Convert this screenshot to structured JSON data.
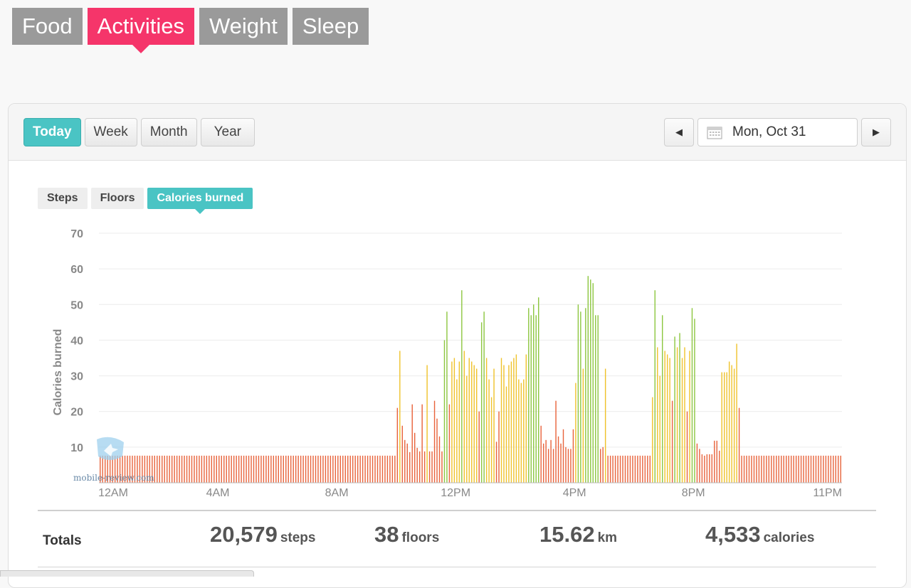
{
  "topnav": {
    "tabs": [
      {
        "label": "Food",
        "active": false
      },
      {
        "label": "Activities",
        "active": true
      },
      {
        "label": "Weight",
        "active": false
      },
      {
        "label": "Sleep",
        "active": false
      }
    ]
  },
  "range": {
    "buttons": [
      {
        "label": "Today",
        "active": true
      },
      {
        "label": "Week",
        "active": false
      },
      {
        "label": "Month",
        "active": false
      },
      {
        "label": "Year",
        "active": false
      }
    ]
  },
  "date": {
    "label": "Mon, Oct 31",
    "prev_icon": "triangle-left-icon",
    "next_icon": "triangle-right-icon",
    "calendar_icon": "calendar-icon"
  },
  "metric_tabs": [
    {
      "label": "Steps",
      "active": false
    },
    {
      "label": "Floors",
      "active": false
    },
    {
      "label": "Calories burned",
      "active": true
    }
  ],
  "colors": {
    "accent": "#4ac4c4",
    "activities": "#f5356a",
    "low": "#e8623a",
    "mid": "#efc22a",
    "high": "#8cc63f"
  },
  "chart_data": {
    "type": "bar",
    "ylabel": "Calories burned",
    "xlabel": "",
    "ylim": [
      0,
      70
    ],
    "yticks": [
      10,
      20,
      30,
      40,
      50,
      60,
      70
    ],
    "xticks": [
      "12AM",
      "4AM",
      "8AM",
      "12PM",
      "4PM",
      "8PM",
      "11PM"
    ],
    "interval_minutes": 5,
    "values": [
      7.6,
      7.6,
      7.6,
      7.6,
      7.6,
      7.6,
      7.6,
      7.6,
      7.6,
      7.6,
      7.6,
      7.6,
      7.6,
      7.6,
      7.6,
      7.6,
      7.6,
      7.6,
      7.6,
      7.6,
      7.6,
      7.6,
      7.6,
      7.6,
      7.6,
      7.6,
      7.6,
      7.6,
      7.6,
      7.6,
      7.6,
      7.6,
      7.6,
      7.6,
      7.6,
      7.6,
      7.6,
      7.6,
      7.6,
      7.6,
      7.6,
      7.6,
      7.6,
      7.6,
      7.6,
      7.6,
      7.6,
      7.6,
      7.6,
      7.6,
      7.6,
      7.6,
      7.6,
      7.6,
      7.6,
      7.6,
      7.6,
      7.6,
      7.6,
      7.6,
      7.6,
      7.6,
      7.6,
      7.6,
      7.6,
      7.6,
      7.6,
      7.6,
      7.6,
      7.6,
      7.6,
      7.6,
      7.6,
      7.6,
      7.6,
      7.6,
      7.6,
      7.6,
      7.6,
      7.6,
      7.6,
      7.6,
      7.6,
      7.6,
      7.6,
      7.6,
      7.6,
      7.6,
      7.6,
      7.6,
      7.6,
      7.6,
      7.6,
      7.6,
      7.6,
      7.6,
      7.6,
      7.6,
      7.6,
      7.6,
      7.6,
      7.6,
      7.6,
      7.6,
      7.6,
      7.6,
      7.6,
      7.6,
      7.6,
      7.6,
      7.6,
      7.6,
      7.6,
      7.6,
      7.6,
      7.6,
      7.6,
      7.6,
      7.6,
      7.6,
      21,
      37,
      16,
      12,
      11,
      8.6,
      22,
      14,
      9.8,
      8.8,
      22,
      8.8,
      33,
      8.8,
      8.8,
      23,
      18,
      13,
      8.8,
      40,
      48,
      22,
      34,
      35,
      29,
      34,
      54,
      37,
      30,
      35,
      34,
      33,
      32,
      20,
      45,
      48,
      35,
      29,
      24,
      32,
      11.5,
      20,
      35,
      33,
      27,
      33,
      34,
      35,
      36,
      29,
      28,
      29,
      36,
      49,
      47,
      50,
      47,
      52,
      16,
      11,
      12,
      9.5,
      12,
      9.5,
      23,
      13,
      11,
      15,
      10,
      9.5,
      9.5,
      15,
      28,
      50,
      48,
      32,
      49,
      58,
      57,
      56,
      47,
      47,
      9.5,
      10,
      32,
      7.6,
      7.6,
      7.6,
      7.6,
      7.6,
      7.6,
      7.6,
      7.6,
      7.6,
      7.6,
      7.6,
      7.6,
      7.6,
      7.6,
      7.6,
      7.6,
      7.6,
      7.6,
      24,
      54,
      38,
      30,
      47,
      37,
      36,
      35,
      23,
      41,
      38,
      42,
      35,
      38,
      20,
      37,
      49,
      46,
      11,
      9.5,
      8,
      7.6,
      8,
      8,
      8,
      11.8,
      11.8,
      9,
      31,
      31,
      31,
      34,
      33,
      32,
      39,
      21,
      7.6,
      7.6,
      7.6,
      7.6,
      7.6,
      7.6,
      7.6,
      7.6,
      7.6,
      7.6,
      7.6,
      7.6,
      7.6,
      7.6,
      7.6,
      7.6,
      7.6,
      7.6,
      7.6,
      7.6,
      7.6,
      7.6,
      7.6,
      7.6,
      7.6,
      7.6,
      7.6,
      7.6,
      7.6,
      7.6,
      7.6,
      7.6,
      7.6,
      7.6,
      7.6,
      7.6,
      7.6,
      7.6,
      7.6,
      7.6,
      7.6
    ]
  },
  "totals": {
    "label": "Totals",
    "items": [
      {
        "value": "20,579",
        "unit": "steps"
      },
      {
        "value": "38",
        "unit": "floors"
      },
      {
        "value": "15.62",
        "unit": "km"
      },
      {
        "value": "4,533",
        "unit": "calories"
      }
    ]
  },
  "watermark": "mobile-review.com"
}
